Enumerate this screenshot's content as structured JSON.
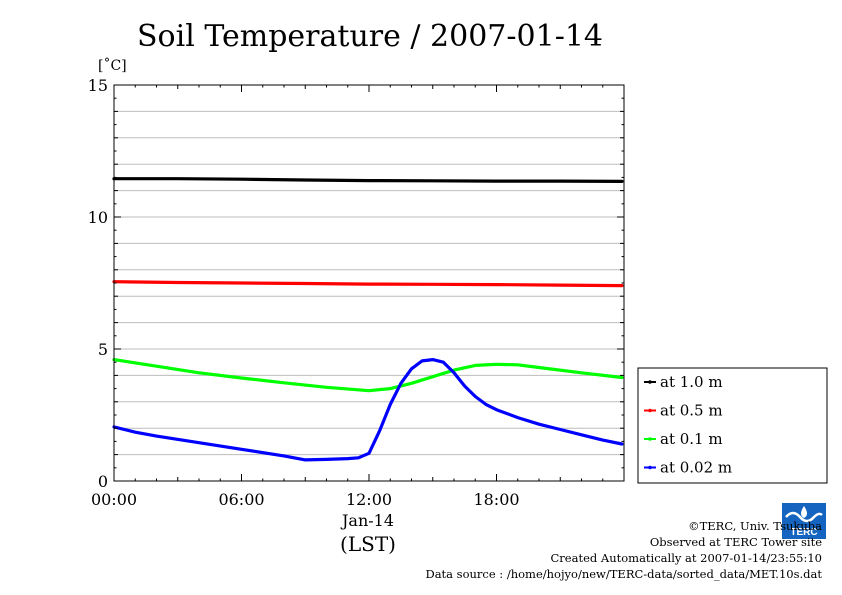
{
  "chart_data": {
    "type": "line",
    "title": "Soil Temperature / 2007-01-14",
    "yunit": "[˚C]",
    "xlabel_date": "Jan-14",
    "xlabel": "(LST)",
    "ylim": [
      0,
      15
    ],
    "yticks": [
      "0",
      "5",
      "10",
      "15"
    ],
    "xlim": [
      0,
      24
    ],
    "xticks": [
      {
        "value": 0,
        "label": "00:00"
      },
      {
        "value": 6,
        "label": "06:00"
      },
      {
        "value": 12,
        "label": "12:00"
      },
      {
        "value": 18,
        "label": "18:00"
      }
    ],
    "grid": true,
    "legend_position": "right",
    "series": [
      {
        "name": "at 1.0 m",
        "color": "#000000",
        "x": [
          0,
          3,
          6,
          9,
          12,
          15,
          18,
          21,
          23.9
        ],
        "y": [
          11.45,
          11.45,
          11.43,
          11.4,
          11.38,
          11.37,
          11.36,
          11.36,
          11.35
        ]
      },
      {
        "name": "at 0.5 m",
        "color": "#ff0000",
        "x": [
          0,
          3,
          6,
          9,
          12,
          15,
          18,
          21,
          23.9
        ],
        "y": [
          7.55,
          7.52,
          7.5,
          7.48,
          7.46,
          7.45,
          7.44,
          7.42,
          7.4
        ]
      },
      {
        "name": "at 0.1 m",
        "color": "#00ff00",
        "x": [
          0,
          2,
          4,
          6,
          8,
          10,
          12,
          13,
          14,
          15,
          16,
          17,
          18,
          19,
          20,
          22,
          23.9
        ],
        "y": [
          4.6,
          4.35,
          4.1,
          3.9,
          3.72,
          3.55,
          3.42,
          3.5,
          3.7,
          3.95,
          4.2,
          4.38,
          4.42,
          4.4,
          4.3,
          4.1,
          3.92
        ]
      },
      {
        "name": "at 0.02 m",
        "color": "#0000ff",
        "x": [
          0,
          1,
          2,
          4,
          6,
          8,
          9,
          10,
          11,
          11.5,
          12,
          12.5,
          13,
          13.5,
          14,
          14.5,
          15,
          15.5,
          16,
          16.5,
          17,
          17.5,
          18,
          19,
          20,
          21,
          22,
          23,
          23.9
        ],
        "y": [
          2.05,
          1.85,
          1.7,
          1.45,
          1.2,
          0.95,
          0.8,
          0.82,
          0.85,
          0.88,
          1.05,
          1.9,
          2.9,
          3.7,
          4.25,
          4.55,
          4.6,
          4.5,
          4.1,
          3.6,
          3.2,
          2.9,
          2.7,
          2.4,
          2.15,
          1.95,
          1.75,
          1.55,
          1.4
        ]
      }
    ]
  },
  "credits": {
    "copyright": "©TERC, Univ. Tsukuba",
    "site": "Observed at TERC Tower site",
    "created": "Created Automatically at 2007-01-14/23:55:10",
    "source": "Data source : /home/hojyo/new/TERC-data/sorted_data/MET.10s.dat"
  },
  "logo": {
    "text": "TERC",
    "color": "#1565c0"
  }
}
